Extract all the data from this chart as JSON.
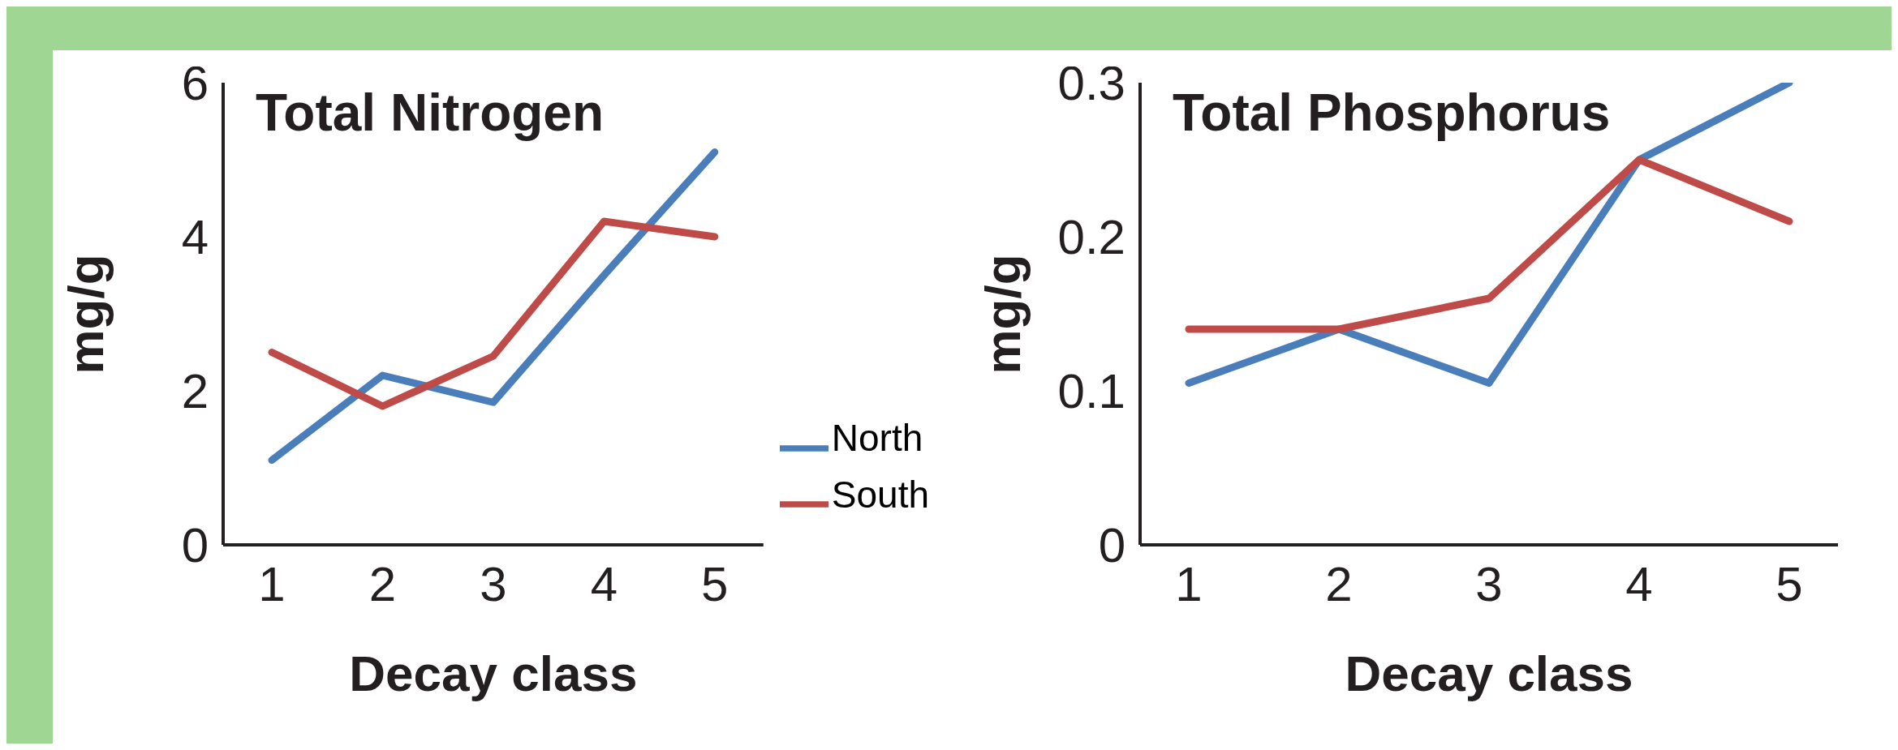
{
  "chart_data": [
    {
      "type": "line",
      "title": "Total Nitrogen",
      "xlabel": "Decay class",
      "ylabel": "mg/g",
      "categories": [
        "1",
        "2",
        "3",
        "4",
        "5"
      ],
      "series": [
        {
          "name": "North",
          "color": "#4a7ebb",
          "values": [
            1.1,
            2.2,
            1.85,
            3.5,
            5.1
          ]
        },
        {
          "name": "South",
          "color": "#be4b48",
          "values": [
            2.5,
            1.8,
            2.45,
            4.2,
            4.0
          ]
        }
      ],
      "ylim": [
        0,
        6
      ],
      "yticks": [
        0,
        2,
        4,
        6
      ],
      "grid": false,
      "legend": "bottom right",
      "marker": "none",
      "line_style": "solid"
    },
    {
      "type": "line",
      "title": "Total Phosphorus",
      "xlabel": "Decay class",
      "ylabel": "mg/g",
      "categories": [
        "1",
        "2",
        "3",
        "4",
        "5"
      ],
      "series": [
        {
          "color": "#4a7ebb",
          "values": [
            0.105,
            0.14,
            0.105,
            0.25,
            0.3
          ]
        },
        {
          "color": "#be4b48",
          "values": [
            0.14,
            0.14,
            0.16,
            0.25,
            0.21
          ]
        }
      ],
      "ylim": [
        0,
        0.3
      ],
      "yticks": [
        0,
        0.1,
        0.2,
        0.3
      ],
      "grid": false,
      "legend": false,
      "marker": "none",
      "line_style": "solid"
    }
  ]
}
